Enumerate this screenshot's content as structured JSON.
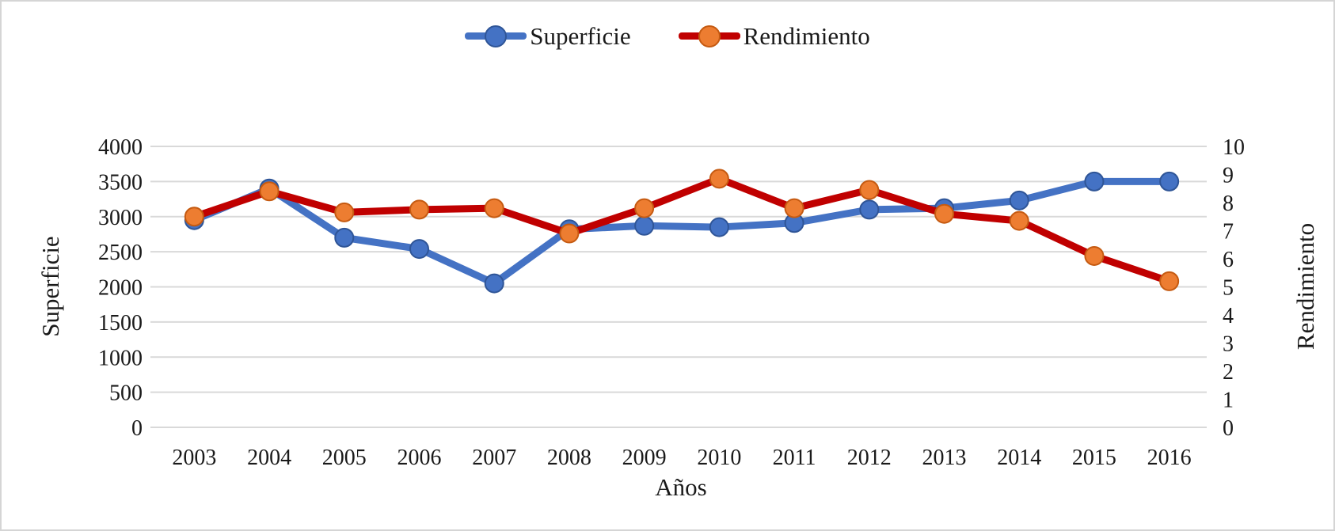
{
  "frame": {
    "background": "#ffffff",
    "border_color": "#d5d5d5"
  },
  "legend": {
    "position": "top",
    "items": [
      {
        "label": "Superficie",
        "line_color": "#4472C4",
        "marker_color": "#4472C4",
        "marker_border": "#2F5597"
      },
      {
        "label": "Rendimiento",
        "line_color": "#C00000",
        "marker_color": "#ED7D31",
        "marker_border": "#C55A11"
      }
    ]
  },
  "chart_data": {
    "type": "line",
    "title": "",
    "xlabel": "Años",
    "x": [
      "2003",
      "2004",
      "2005",
      "2006",
      "2007",
      "2008",
      "2009",
      "2010",
      "2011",
      "2012",
      "2013",
      "2014",
      "2015",
      "2016"
    ],
    "series": [
      {
        "name": "Superficie",
        "axis": "left",
        "line_color": "#4472C4",
        "marker_color": "#4472C4",
        "marker_border": "#2F5597",
        "values": [
          2950,
          3400,
          2700,
          2540,
          2050,
          2820,
          2870,
          2850,
          2910,
          3100,
          3120,
          3230,
          3500,
          3500
        ]
      },
      {
        "name": "Rendimiento",
        "axis": "right",
        "line_color": "#C00000",
        "marker_color": "#ED7D31",
        "marker_border": "#C55A11",
        "values": [
          7.5,
          8.4,
          7.65,
          7.75,
          7.8,
          6.9,
          7.8,
          8.85,
          7.8,
          8.45,
          7.6,
          7.35,
          6.1,
          5.2
        ]
      }
    ],
    "left_axis": {
      "label": "Superficie",
      "min": 0,
      "max": 4000,
      "step": 500,
      "ticks": [
        0,
        500,
        1000,
        1500,
        2000,
        2500,
        3000,
        3500,
        4000
      ]
    },
    "right_axis": {
      "label": "Rendimiento",
      "min": 0,
      "max": 10,
      "step": 1,
      "ticks": [
        0,
        1,
        2,
        3,
        4,
        5,
        6,
        7,
        8,
        9,
        10
      ]
    },
    "grid": true,
    "grid_color": "#D9D9D9",
    "text_color": "#1a1a1a",
    "legend_position": "top"
  }
}
